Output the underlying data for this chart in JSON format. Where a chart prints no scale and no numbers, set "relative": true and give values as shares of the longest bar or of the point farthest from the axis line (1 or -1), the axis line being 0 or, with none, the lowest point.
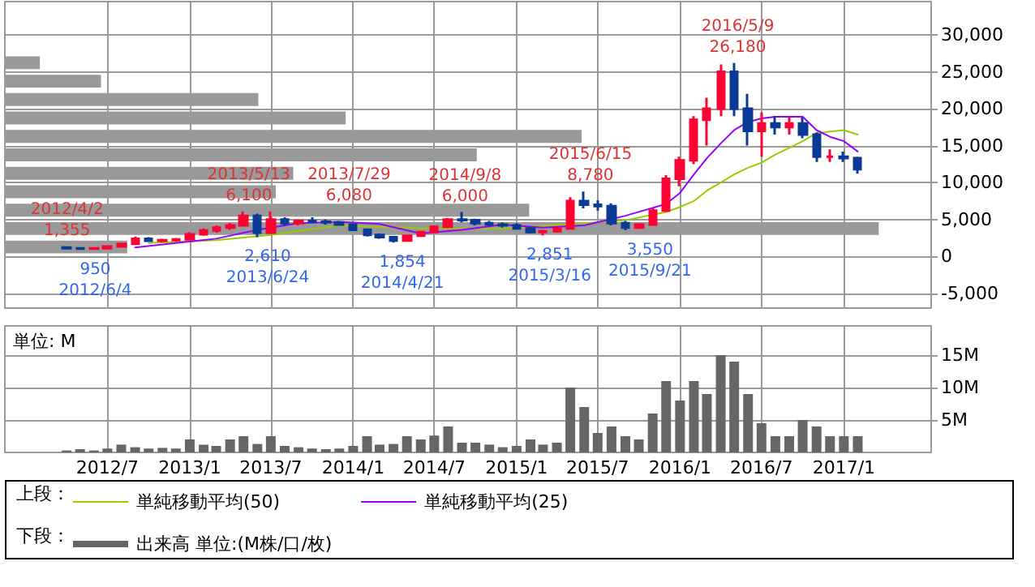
{
  "chart_data": [
    {
      "type": "candlestick",
      "x": [
        "2012-04",
        "2012-05",
        "2012-06",
        "2012-07",
        "2012-08",
        "2012-09",
        "2012-10",
        "2012-11",
        "2012-12",
        "2013-01",
        "2013-02",
        "2013-03",
        "2013-04",
        "2013-05",
        "2013-06",
        "2013-07",
        "2013-08",
        "2013-09",
        "2013-10",
        "2013-11",
        "2013-12",
        "2014-01",
        "2014-02",
        "2014-03",
        "2014-04",
        "2014-05",
        "2014-06",
        "2014-07",
        "2014-08",
        "2014-09",
        "2014-10",
        "2014-11",
        "2014-12",
        "2015-01",
        "2015-02",
        "2015-03",
        "2015-04",
        "2015-05",
        "2015-06",
        "2015-07",
        "2015-08",
        "2015-09",
        "2015-10",
        "2015-11",
        "2015-12",
        "2016-01",
        "2016-02",
        "2016-03",
        "2016-04",
        "2016-05",
        "2016-06",
        "2016-07",
        "2016-08",
        "2016-09",
        "2016-10",
        "2016-11",
        "2016-12",
        "2017-01",
        "2017-02"
      ],
      "ohlc": [
        [
          1200,
          1355,
          1050,
          1100
        ],
        [
          1100,
          1200,
          980,
          1050
        ],
        [
          1050,
          1150,
          950,
          1100
        ],
        [
          1100,
          1400,
          1050,
          1350
        ],
        [
          1350,
          1800,
          1300,
          1700
        ],
        [
          1700,
          2700,
          1650,
          2400
        ],
        [
          2400,
          2600,
          2000,
          2100
        ],
        [
          2100,
          2400,
          1900,
          2200
        ],
        [
          2200,
          2500,
          2000,
          2300
        ],
        [
          2300,
          3300,
          2200,
          3000
        ],
        [
          3000,
          3800,
          2800,
          3500
        ],
        [
          3500,
          4200,
          3200,
          3900
        ],
        [
          3900,
          4500,
          3600,
          4200
        ],
        [
          4200,
          6100,
          4100,
          5500
        ],
        [
          5500,
          5800,
          2610,
          3200
        ],
        [
          3200,
          6080,
          3100,
          5000
        ],
        [
          5000,
          5300,
          4200,
          4500
        ],
        [
          4500,
          5000,
          4200,
          4800
        ],
        [
          4800,
          5300,
          4500,
          4700
        ],
        [
          4700,
          5000,
          4300,
          4600
        ],
        [
          4600,
          4800,
          4200,
          4300
        ],
        [
          4300,
          4500,
          3500,
          3600
        ],
        [
          3600,
          3800,
          2700,
          2900
        ],
        [
          2900,
          3100,
          2400,
          2600
        ],
        [
          2600,
          2700,
          1854,
          2150
        ],
        [
          2150,
          2900,
          2100,
          2800
        ],
        [
          2800,
          3400,
          2700,
          3300
        ],
        [
          3300,
          4200,
          3200,
          4000
        ],
        [
          4000,
          5200,
          3900,
          5000
        ],
        [
          5000,
          6000,
          4600,
          4900
        ],
        [
          4900,
          5100,
          4200,
          4500
        ],
        [
          4500,
          4800,
          4100,
          4300
        ],
        [
          4300,
          4600,
          3900,
          4200
        ],
        [
          4200,
          4500,
          3600,
          3800
        ],
        [
          3800,
          4000,
          3100,
          3300
        ],
        [
          3300,
          3600,
          2851,
          3400
        ],
        [
          3400,
          4000,
          3200,
          3800
        ],
        [
          3800,
          8000,
          3700,
          7500
        ],
        [
          7500,
          8780,
          6500,
          7000
        ],
        [
          7000,
          7600,
          6200,
          6800
        ],
        [
          6800,
          7200,
          4200,
          4500
        ],
        [
          4500,
          4800,
          3550,
          3900
        ],
        [
          3900,
          4500,
          3700,
          4300
        ],
        [
          4300,
          6500,
          4200,
          6200
        ],
        [
          6200,
          11000,
          6000,
          10500
        ],
        [
          10500,
          13500,
          9500,
          13000
        ],
        [
          13000,
          19000,
          12500,
          18500
        ],
        [
          18500,
          21500,
          15000,
          20000
        ],
        [
          20000,
          26000,
          19000,
          25000
        ],
        [
          25000,
          26180,
          19000,
          20000
        ],
        [
          20000,
          22000,
          15000,
          17000
        ],
        [
          17000,
          19500,
          13500,
          18000
        ],
        [
          18000,
          19000,
          16500,
          17500
        ],
        [
          17500,
          18800,
          16500,
          18000
        ],
        [
          18000,
          18800,
          16000,
          16500
        ],
        [
          16500,
          16800,
          12800,
          13500
        ],
        [
          13500,
          14500,
          12800,
          13500
        ],
        [
          13500,
          14200,
          12800,
          13300
        ],
        [
          13300,
          13500,
          11200,
          11800
        ]
      ],
      "series": [
        {
          "type": "line",
          "name": "単純移動平均(50)",
          "color": "#99cc00",
          "x": [
            "2012-10",
            "2013-03",
            "2013-07",
            "2013-12",
            "2014-06",
            "2014-12",
            "2015-06",
            "2015-09",
            "2015-12",
            "2016-01",
            "2016-02",
            "2016-03",
            "2016-04",
            "2016-05",
            "2016-06",
            "2016-07",
            "2016-08",
            "2016-09",
            "2016-10",
            "2016-11",
            "2016-12",
            "2017-01",
            "2017-02"
          ],
          "values": [
            1800,
            2200,
            2900,
            4200,
            3800,
            3800,
            4500,
            4900,
            6000,
            6700,
            7500,
            8900,
            10000,
            11100,
            12000,
            12700,
            13800,
            14700,
            15600,
            16700,
            16900,
            17100,
            16500
          ]
        },
        {
          "type": "line",
          "name": "単純移動平均(25)",
          "color": "#9900ff",
          "x": [
            "2012-09",
            "2012-12",
            "2013-03",
            "2013-06",
            "2013-09",
            "2013-12",
            "2014-03",
            "2014-06",
            "2014-09",
            "2014-12",
            "2015-03",
            "2015-06",
            "2015-09",
            "2015-12",
            "2016-01",
            "2016-02",
            "2016-03",
            "2016-04",
            "2016-05",
            "2016-06",
            "2016-07",
            "2016-08",
            "2016-09",
            "2016-10",
            "2016-11",
            "2016-12",
            "2017-01",
            "2017-02"
          ],
          "values": [
            1200,
            1800,
            2400,
            3600,
            4500,
            4700,
            4400,
            3100,
            3600,
            4300,
            3900,
            4200,
            5500,
            7100,
            8600,
            11100,
            13300,
            15300,
            17100,
            18200,
            18700,
            18900,
            18900,
            18900,
            17100,
            16200,
            15600,
            14200
          ]
        }
      ],
      "xlim": [
        "2011-11-15",
        "2017-07-15"
      ],
      "xticks": [
        {
          "value": "2012-07",
          "label": null
        },
        {
          "value": "2013-01",
          "label": null
        },
        {
          "value": "2013-07",
          "label": null
        },
        {
          "value": "2014-01",
          "label": null
        },
        {
          "value": "2014-07",
          "label": null
        },
        {
          "value": "2015-01",
          "label": null
        },
        {
          "value": "2015-07",
          "label": null
        },
        {
          "value": "2016-01",
          "label": null
        },
        {
          "value": "2016-07",
          "label": null
        },
        {
          "value": "2017-01",
          "label": null
        }
      ],
      "ylim": [
        -7000,
        34500
      ],
      "yticks": [
        {
          "value": -5000,
          "label": "-5,000"
        },
        {
          "value": 0,
          "label": "0"
        },
        {
          "value": 5000,
          "label": "5,000"
        },
        {
          "value": 10000,
          "label": "10,000"
        },
        {
          "value": 15000,
          "label": "15,000"
        },
        {
          "value": 20000,
          "label": "20,000"
        },
        {
          "value": 25000,
          "label": "25,000"
        },
        {
          "value": 30000,
          "label": "30,000"
        }
      ],
      "tick_labels": "y",
      "grid": true,
      "legend": "bottom",
      "legend_title": "上段：",
      "marker": "none",
      "annotations": [
        {
          "text": "2012/4/2\n1,355",
          "x": "2012-04-02",
          "y": 1355
        },
        {
          "text": "950\n2012/6/4",
          "x": "2012-06-04",
          "y": 950
        },
        {
          "text": "2013/5/13\n6,100",
          "x": "2013-05-13",
          "y": 6100
        },
        {
          "text": "2013/7/29\n6,080",
          "x": "2013-07-29",
          "y": 6080
        },
        {
          "text": "2,610\n2013/6/24",
          "x": "2013-06-24",
          "y": 2610
        },
        {
          "text": "1,854\n2014/4/21",
          "x": "2014-04-21",
          "y": 1854
        },
        {
          "text": "2014/9/8\n6,000",
          "x": "2014-09-08",
          "y": 6000
        },
        {
          "text": "2,851\n2015/3/16",
          "x": "2015-03-16",
          "y": 2851
        },
        {
          "text": "2015/6/15\n8,780",
          "x": "2015-06-15",
          "y": 8780
        },
        {
          "text": "3,550\n2015/9/21",
          "x": "2015-09-21",
          "y": 3550
        },
        {
          "text": "2016/5/9\n26,180",
          "x": "2016-05-09",
          "y": 26180
        }
      ]
    },
    {
      "type": "bar",
      "x": [
        "2012-04",
        "2012-05",
        "2012-06",
        "2012-07",
        "2012-08",
        "2012-09",
        "2012-10",
        "2012-11",
        "2012-12",
        "2013-01",
        "2013-02",
        "2013-03",
        "2013-04",
        "2013-05",
        "2013-06",
        "2013-07",
        "2013-08",
        "2013-09",
        "2013-10",
        "2013-11",
        "2013-12",
        "2014-01",
        "2014-02",
        "2014-03",
        "2014-04",
        "2014-05",
        "2014-06",
        "2014-07",
        "2014-08",
        "2014-09",
        "2014-10",
        "2014-11",
        "2014-12",
        "2015-01",
        "2015-02",
        "2015-03",
        "2015-04",
        "2015-05",
        "2015-06",
        "2015-07",
        "2015-08",
        "2015-09",
        "2015-10",
        "2015-11",
        "2015-12",
        "2016-01",
        "2016-02",
        "2016-03",
        "2016-04",
        "2016-05",
        "2016-06",
        "2016-07",
        "2016-08",
        "2016-09",
        "2016-10",
        "2016-11",
        "2016-12",
        "2017-01",
        "2017-02"
      ],
      "series": [
        {
          "name": "出来高 単位:(M株/口/枚)",
          "color": "#666666",
          "values": [
            0.3,
            0.5,
            0.3,
            0.6,
            1.2,
            0.8,
            0.6,
            0.7,
            0.6,
            2.0,
            1.2,
            1.0,
            2.0,
            2.5,
            1.3,
            2.5,
            1.0,
            0.8,
            0.6,
            0.5,
            0.6,
            1.0,
            2.5,
            1.2,
            1.3,
            2.5,
            2.0,
            2.6,
            4.0,
            1.5,
            1.5,
            1.2,
            0.8,
            1.0,
            2.0,
            1.2,
            1.5,
            10,
            7.0,
            3.0,
            4.0,
            2.5,
            2.0,
            6.0,
            11,
            8.0,
            11,
            9.0,
            15,
            14,
            9.0,
            4.5,
            2.5,
            2.5,
            5.0,
            4.0,
            2.5,
            2.5,
            2.5
          ]
        }
      ],
      "xlim": [
        "2011-11-15",
        "2017-07-15"
      ],
      "xticks": [
        {
          "value": "2012-07",
          "label": "2012/7"
        },
        {
          "value": "2013-01",
          "label": "2013/1"
        },
        {
          "value": "2013-07",
          "label": "2013/7"
        },
        {
          "value": "2014-01",
          "label": "2014/1"
        },
        {
          "value": "2014-07",
          "label": "2014/7"
        },
        {
          "value": "2015-01",
          "label": "2015/1"
        },
        {
          "value": "2015-07",
          "label": "2015/7"
        },
        {
          "value": "2016-01",
          "label": "2016/1"
        },
        {
          "value": "2016-07",
          "label": "2016/7"
        },
        {
          "value": "2017-01",
          "label": "2017/1"
        }
      ],
      "ylim": [
        0,
        19.5
      ],
      "yticks": [
        {
          "value": 5,
          "label": "5M"
        },
        {
          "value": 10,
          "label": "10M"
        },
        {
          "value": 15,
          "label": "15M"
        }
      ],
      "grid": true,
      "legend": "bottom",
      "legend_title": "下段：",
      "annotations": [
        "単位: M"
      ]
    },
    {
      "type": "bar",
      "orientation": "horizontal",
      "relative": true,
      "color": "#999999",
      "categories": [
        null,
        null,
        null,
        null,
        null,
        null,
        null,
        null,
        null,
        null,
        null
      ],
      "values": [
        0.04,
        0.11,
        0.29,
        0.39,
        0.66,
        0.54,
        0.33,
        0.31,
        0.6,
        1,
        0.14
      ]
    }
  ]
}
